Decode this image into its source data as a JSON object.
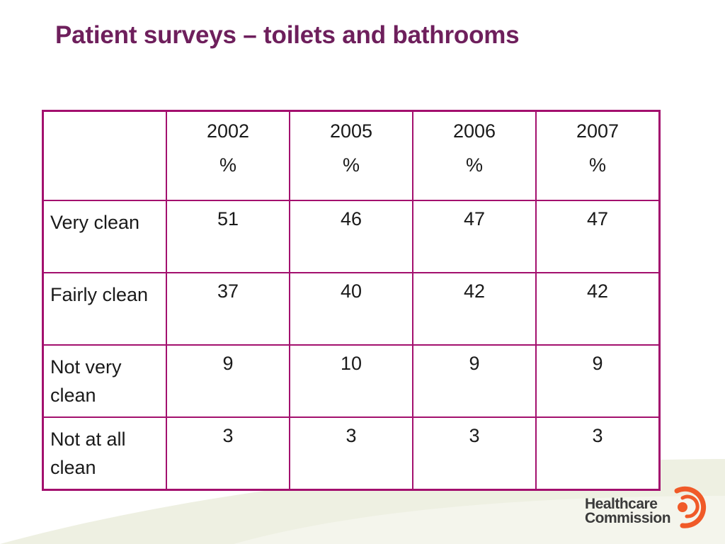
{
  "slide": {
    "title": "Patient surveys – toilets and bathrooms"
  },
  "table": {
    "header": {
      "corner": "",
      "years": [
        "2002",
        "2005",
        "2006",
        "2007"
      ],
      "unit": "%"
    },
    "rows": [
      {
        "label": "Very clean",
        "values": [
          "51",
          "46",
          "47",
          "47"
        ]
      },
      {
        "label": "Fairly clean",
        "values": [
          "37",
          "40",
          "42",
          "42"
        ]
      },
      {
        "label": "Not very clean",
        "values": [
          "9",
          "10",
          "9",
          "9"
        ]
      },
      {
        "label": "Not at all clean",
        "values": [
          "3",
          "3",
          "3",
          "3"
        ]
      }
    ]
  },
  "logo": {
    "line1": "Healthcare",
    "line2": "Commission"
  },
  "colors": {
    "title": "#6e1f5c",
    "table_border": "#a3106e",
    "logo_orange": "#f05a28",
    "swoosh": "#eef0e2"
  }
}
